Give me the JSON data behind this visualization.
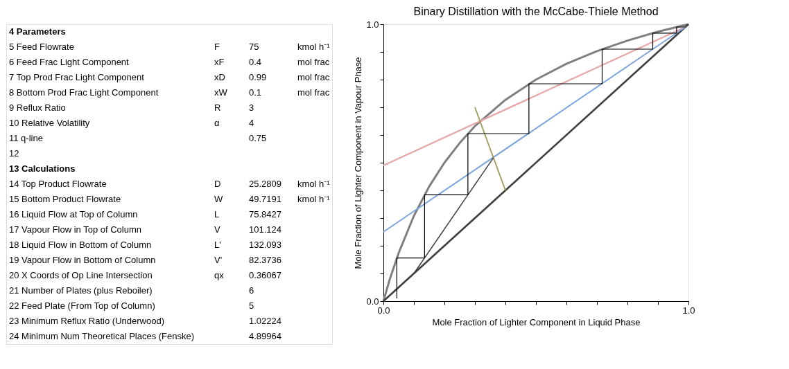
{
  "chart_data": [
    {
      "type": "other",
      "annotations": [
        "4\tParameters",
        "5\tFeed Flowrate\tF\t75\tkmol h⁻¹",
        "6\tFeed Frac Light Component\txF\t0.4\tmol frac",
        "7\tTop Prod Frac Light Component\txD\t0.99\tmol frac",
        "8\tBottom Prod Frac Light Component\txW\t0.1\tmol frac",
        "9\tReflux Ratio\tR\t3",
        "10\tRelative Volatility\tα\t4",
        "11\tq-line\t\t0.75",
        "12",
        "13\tCalculations",
        "14\tTop Product Flowrate\tD\t25.2809\tkmol h⁻¹",
        "15\tBottom Product Flowrate\tW\t49.7191\tkmol h⁻¹",
        "16\tLiquid Flow at Top of Column\tL\t75.8427",
        "17\tVapour Flow in Top of Column\tV\t101.124",
        "18\tLiquid Flow in Bottom of Column\tL'\t132.093",
        "19\tVapour Flow in Bottom of Column\tV'\t82.3736",
        "20\tX Coords of Op Line Intersection\tqx\t0.36067",
        "21\tNumber of Plates (plus Reboiler)\t\t6",
        "22\tFeed Plate (From Top of Column)\t\t5",
        "23\tMinimum Reflux Ratio (Underwood)\t\t1.02224",
        "24\tMinimum Num Theoretical Places (Fenske)\t\t4.89964"
      ]
    },
    {
      "type": "line",
      "title": "Binary Distillation with the McCabe-Thiele Method",
      "xlabel": "Mole Fraction of Lighter Component  in Liquid Phase",
      "ylabel": "Mole Fraction of Lighter Component  in Vapour Phase",
      "xlim": [
        0,
        1
      ],
      "ylim": [
        0,
        1
      ],
      "xticks": [
        {
          "value": 0,
          "label": "0.0"
        },
        {
          "value": 0.1,
          "label": null
        },
        {
          "value": 0.2,
          "label": null
        },
        {
          "value": 0.3,
          "label": null
        },
        {
          "value": 0.4,
          "label": null
        },
        {
          "value": 0.5,
          "label": null
        },
        {
          "value": 0.6,
          "label": null
        },
        {
          "value": 0.7,
          "label": null
        },
        {
          "value": 0.8,
          "label": null
        },
        {
          "value": 0.9,
          "label": null
        },
        {
          "value": 1,
          "label": "1.0"
        }
      ],
      "yticks": [
        {
          "value": 0,
          "label": "0.0"
        },
        {
          "value": 0.1,
          "label": null
        },
        {
          "value": 0.2,
          "label": null
        },
        {
          "value": 0.3,
          "label": null
        },
        {
          "value": 0.4,
          "label": null
        },
        {
          "value": 0.5,
          "label": null
        },
        {
          "value": 0.6,
          "label": null
        },
        {
          "value": 0.7,
          "label": null
        },
        {
          "value": 0.8,
          "label": null
        },
        {
          "value": 0.9,
          "label": null
        },
        {
          "value": 1,
          "label": "1.0"
        }
      ],
      "grid": false,
      "legend": false,
      "marker": "none",
      "line_style": "solid",
      "series": [
        {
          "color": "#7f7f7f",
          "x": [
            0,
            0.02,
            0.05,
            0.1,
            0.15,
            0.2,
            0.25,
            0.3,
            0.4,
            0.5,
            0.6,
            0.7,
            0.8,
            0.9,
            1
          ],
          "values": [
            0,
            0.076,
            0.174,
            0.308,
            0.414,
            0.5,
            0.571,
            0.632,
            0.727,
            0.8,
            0.857,
            0.903,
            0.941,
            0.973,
            1
          ]
        },
        {
          "color": "#404040",
          "x": [
            0,
            1
          ],
          "values": [
            0,
            1
          ]
        },
        {
          "color": "#e6a8a8",
          "x": [
            0,
            0.99
          ],
          "values": [
            0.49,
            0.99
          ]
        },
        {
          "color": "#7fa6dc",
          "x": [
            0,
            0.99
          ],
          "values": [
            0.25,
            0.99
          ]
        },
        {
          "color": "#a09a5a",
          "x": [
            0.4,
            0.3
          ],
          "values": [
            0.4,
            0.7
          ]
        },
        {
          "color": "#404040",
          "x": [
            0.1,
            0.3607
          ],
          "values": [
            0.1,
            0.518
          ]
        },
        {
          "color": "#000000",
          "x": [
            0.99,
            0.961,
            0.961,
            0.883,
            0.883,
            0.717,
            0.717,
            0.477,
            0.477,
            0.277,
            0.277,
            0.135,
            0.135,
            0.044,
            0.044
          ],
          "values": [
            0.99,
            0.99,
            0.968,
            0.968,
            0.91,
            0.91,
            0.785,
            0.785,
            0.605,
            0.605,
            0.384,
            0.384,
            0.156,
            0.156,
            0.01
          ]
        }
      ]
    }
  ]
}
